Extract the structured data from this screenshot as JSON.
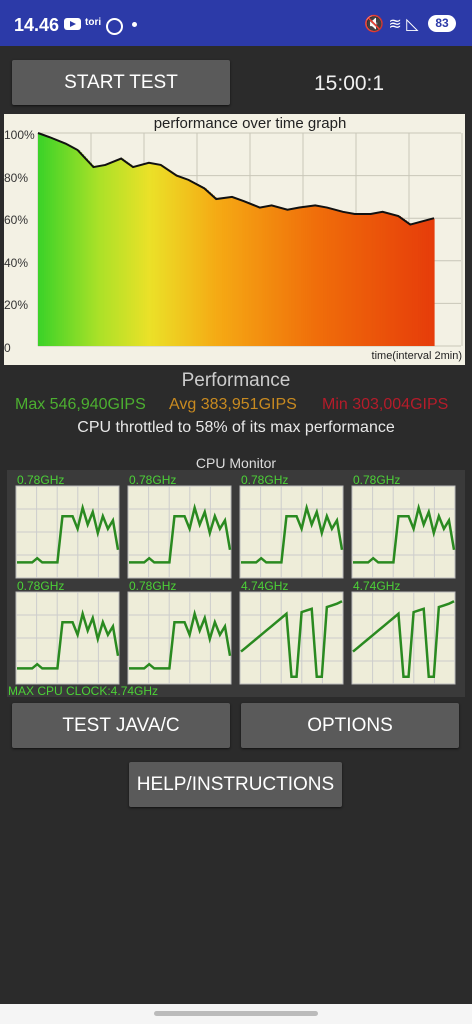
{
  "status_bar": {
    "time": "14.46",
    "notif_text": "tori",
    "battery": "83"
  },
  "buttons": {
    "start": "START TEST",
    "test_java": "TEST JAVA/C",
    "options": "OPTIONS",
    "help": "HELP/INSTRUCTIONS"
  },
  "timer": "15:00:1",
  "graph": {
    "title": "performance over time graph",
    "y_ticks": [
      "100%",
      "80%",
      "60%",
      "40%",
      "20%",
      "0"
    ],
    "x_label": "time(interval 2min)"
  },
  "chart_data": {
    "type": "area",
    "title": "performance over time graph",
    "xlabel": "time(interval 2min)",
    "ylabel": "",
    "ylim": [
      0,
      100
    ],
    "x": [
      0,
      0.03,
      0.07,
      0.1,
      0.14,
      0.17,
      0.21,
      0.24,
      0.28,
      0.31,
      0.35,
      0.38,
      0.42,
      0.45,
      0.49,
      0.52,
      0.56,
      0.59,
      0.63,
      0.66,
      0.7,
      0.73,
      0.77,
      0.8,
      0.84,
      0.87,
      0.91,
      0.94,
      0.98,
      1.0
    ],
    "values": [
      100,
      98,
      95,
      92,
      84,
      85,
      88,
      84,
      86,
      85,
      80,
      78,
      74,
      69,
      70,
      68,
      65,
      66,
      64,
      65,
      66,
      65,
      63,
      62,
      62,
      63,
      61,
      57,
      59,
      60
    ]
  },
  "performance": {
    "heading": "Performance",
    "max": "Max 546,940GIPS",
    "avg": "Avg 383,951GIPS",
    "min": "Min 303,004GIPS",
    "throttle": "CPU throttled to 58% of its max performance"
  },
  "colors": {
    "max": "#4caf30",
    "avg": "#c88a20",
    "min": "#b51c2a",
    "cores_line": "#2a8a20",
    "core_label": "#4cd137"
  },
  "cpu_monitor": {
    "heading": "CPU Monitor",
    "max_clock": "MAX CPU CLOCK:4.74GHz",
    "cores": [
      {
        "freq": "0.78GHz",
        "values": [
          0.15,
          0.15,
          0.15,
          0.15,
          0.2,
          0.15,
          0.15,
          0.15,
          0.15,
          0.7,
          0.7,
          0.7,
          0.55,
          0.8,
          0.6,
          0.75,
          0.5,
          0.7,
          0.55,
          0.65,
          0.3
        ]
      },
      {
        "freq": "0.78GHz",
        "values": [
          0.15,
          0.15,
          0.15,
          0.15,
          0.2,
          0.15,
          0.15,
          0.15,
          0.15,
          0.7,
          0.7,
          0.7,
          0.55,
          0.8,
          0.6,
          0.75,
          0.5,
          0.7,
          0.55,
          0.65,
          0.3
        ]
      },
      {
        "freq": "0.78GHz",
        "values": [
          0.15,
          0.15,
          0.15,
          0.15,
          0.2,
          0.15,
          0.15,
          0.15,
          0.15,
          0.7,
          0.7,
          0.7,
          0.55,
          0.8,
          0.6,
          0.75,
          0.5,
          0.7,
          0.55,
          0.65,
          0.3
        ]
      },
      {
        "freq": "0.78GHz",
        "values": [
          0.15,
          0.15,
          0.15,
          0.15,
          0.2,
          0.15,
          0.15,
          0.15,
          0.15,
          0.7,
          0.7,
          0.7,
          0.55,
          0.8,
          0.6,
          0.75,
          0.5,
          0.7,
          0.55,
          0.65,
          0.3
        ]
      },
      {
        "freq": "0.78GHz",
        "values": [
          0.15,
          0.15,
          0.15,
          0.15,
          0.2,
          0.15,
          0.15,
          0.15,
          0.15,
          0.7,
          0.7,
          0.7,
          0.55,
          0.8,
          0.6,
          0.75,
          0.5,
          0.7,
          0.55,
          0.65,
          0.3
        ]
      },
      {
        "freq": "0.78GHz",
        "values": [
          0.15,
          0.15,
          0.15,
          0.15,
          0.2,
          0.15,
          0.15,
          0.15,
          0.15,
          0.7,
          0.7,
          0.7,
          0.55,
          0.8,
          0.6,
          0.75,
          0.5,
          0.7,
          0.55,
          0.65,
          0.3
        ]
      },
      {
        "freq": "4.74GHz",
        "values": [
          0.35,
          0.4,
          0.45,
          0.5,
          0.55,
          0.6,
          0.65,
          0.7,
          0.75,
          0.8,
          0.05,
          0.05,
          0.82,
          0.84,
          0.86,
          0.05,
          0.05,
          0.88,
          0.9,
          0.92,
          0.95
        ]
      },
      {
        "freq": "4.74GHz",
        "values": [
          0.35,
          0.4,
          0.45,
          0.5,
          0.55,
          0.6,
          0.65,
          0.7,
          0.75,
          0.8,
          0.05,
          0.05,
          0.82,
          0.84,
          0.86,
          0.05,
          0.05,
          0.88,
          0.9,
          0.92,
          0.95
        ]
      }
    ]
  }
}
